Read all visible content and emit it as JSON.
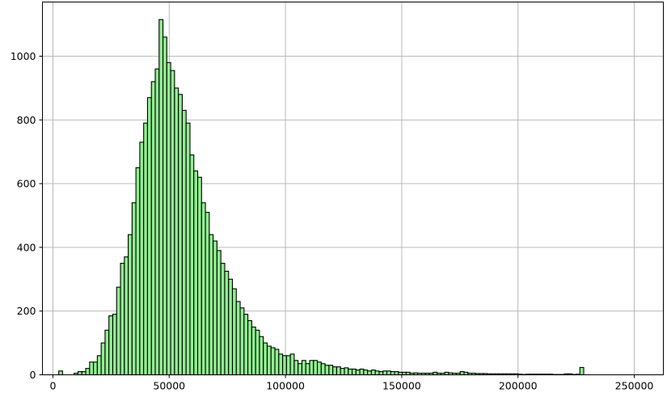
{
  "chart_data": {
    "type": "bar",
    "subtype": "histogram",
    "title": "",
    "xlabel": "",
    "ylabel": "",
    "bar_color": "#90ee90",
    "edge_color": "#000000",
    "grid": true,
    "xlim": [
      -4500,
      262500
    ],
    "ylim": [
      0,
      1170
    ],
    "xticks": [
      0,
      50000,
      100000,
      150000,
      200000,
      250000
    ],
    "xtick_labels": [
      "0",
      "50000",
      "100000",
      "150000",
      "200000",
      "250000"
    ],
    "yticks": [
      0,
      200,
      400,
      600,
      800,
      1000
    ],
    "ytick_labels": [
      "0",
      "200",
      "400",
      "600",
      "800",
      "1000"
    ],
    "bin_start": 2500,
    "bin_width": 1660,
    "counts": [
      12,
      0,
      0,
      0,
      5,
      10,
      10,
      20,
      40,
      40,
      60,
      100,
      140,
      185,
      190,
      275,
      350,
      370,
      440,
      540,
      650,
      730,
      790,
      870,
      920,
      960,
      1115,
      1060,
      980,
      955,
      900,
      880,
      830,
      790,
      690,
      640,
      620,
      540,
      510,
      440,
      420,
      390,
      350,
      325,
      300,
      270,
      230,
      210,
      190,
      170,
      150,
      140,
      120,
      100,
      90,
      85,
      80,
      65,
      60,
      60,
      65,
      45,
      35,
      45,
      35,
      45,
      45,
      40,
      35,
      30,
      30,
      25,
      25,
      20,
      22,
      18,
      18,
      15,
      18,
      15,
      12,
      15,
      12,
      10,
      12,
      12,
      10,
      10,
      8,
      8,
      8,
      5,
      6,
      5,
      5,
      5,
      5,
      8,
      5,
      5,
      8,
      6,
      5,
      5,
      10,
      8,
      5,
      5,
      4,
      4,
      4,
      3,
      3,
      3,
      3,
      3,
      3,
      3,
      3,
      2,
      1,
      2,
      2,
      2,
      2,
      2,
      2,
      2,
      1,
      1,
      1,
      3,
      3,
      1,
      2,
      23
    ]
  }
}
